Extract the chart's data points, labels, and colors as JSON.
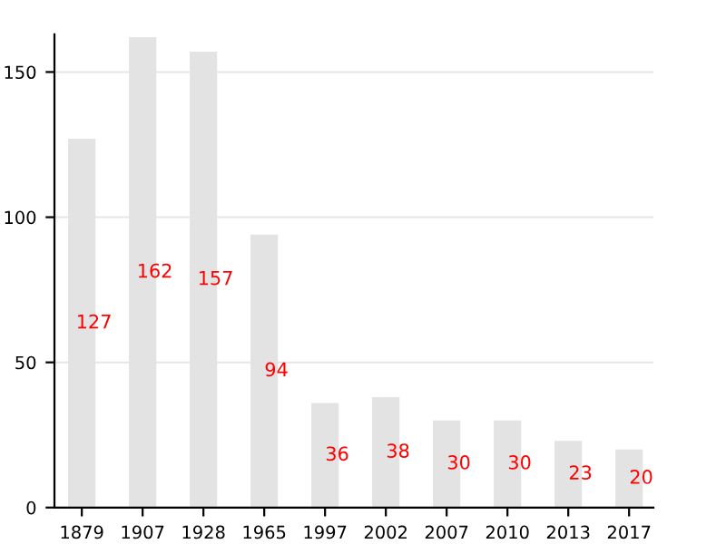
{
  "chart_data": {
    "type": "bar",
    "categories": [
      "1879",
      "1907",
      "1928",
      "1965",
      "1997",
      "2002",
      "2007",
      "2010",
      "2013",
      "2017"
    ],
    "values": [
      127,
      162,
      157,
      94,
      36,
      38,
      30,
      30,
      23,
      20
    ],
    "color": "#e3e3e3",
    "ylim": [
      0,
      163
    ],
    "yticks": [
      0,
      50,
      100,
      150
    ],
    "grid": "y",
    "data_labels": true
  }
}
